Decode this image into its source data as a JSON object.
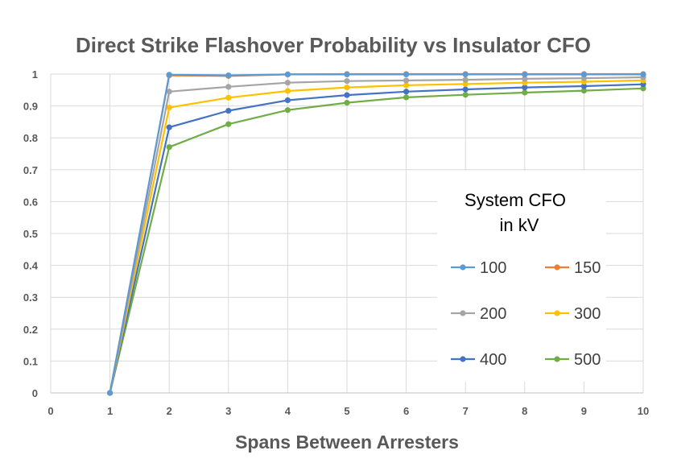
{
  "chart_data": {
    "type": "line",
    "title": "Direct Strike Flashover Probability vs Insulator CFO",
    "xlabel": "Spans Between Arresters",
    "ylabel": "",
    "xlim": [
      0,
      10
    ],
    "ylim": [
      0,
      1
    ],
    "x_ticks": [
      "0",
      "1",
      "2",
      "3",
      "4",
      "5",
      "6",
      "7",
      "8",
      "9",
      "10"
    ],
    "y_ticks": [
      "0",
      "0.1",
      "0.2",
      "0.3",
      "0.4",
      "0.5",
      "0.6",
      "0.7",
      "0.8",
      "0.9",
      "1"
    ],
    "grid": true,
    "legend": {
      "title_line1": "System CFO",
      "title_line2": "in kV",
      "placement": "right"
    },
    "x": [
      1,
      2,
      3,
      4,
      5,
      6,
      7,
      8,
      9,
      10
    ],
    "series": [
      {
        "name": "100",
        "color": "#5b9bd5",
        "values": [
          0,
          0.998,
          0.996,
          0.999,
          0.999,
          0.999,
          0.999,
          0.999,
          0.999,
          0.999
        ]
      },
      {
        "name": "150",
        "color": "#ed7d31",
        "values": [
          0,
          0.996,
          0.994,
          0.999,
          1.0,
          1.0,
          1.0,
          1.0,
          1.0,
          1.0
        ]
      },
      {
        "name": "200",
        "color": "#a5a5a5",
        "values": [
          0,
          0.945,
          0.96,
          0.973,
          0.978,
          0.98,
          0.982,
          0.985,
          0.987,
          0.99
        ]
      },
      {
        "name": "300",
        "color": "#ffc000",
        "values": [
          0,
          0.895,
          0.926,
          0.947,
          0.958,
          0.965,
          0.969,
          0.973,
          0.976,
          0.98
        ]
      },
      {
        "name": "400",
        "color": "#4472c4",
        "values": [
          0,
          0.833,
          0.885,
          0.918,
          0.934,
          0.945,
          0.952,
          0.958,
          0.962,
          0.968
        ]
      },
      {
        "name": "500",
        "color": "#70ad47",
        "values": [
          0,
          0.771,
          0.843,
          0.887,
          0.91,
          0.927,
          0.935,
          0.942,
          0.948,
          0.955
        ]
      }
    ]
  }
}
